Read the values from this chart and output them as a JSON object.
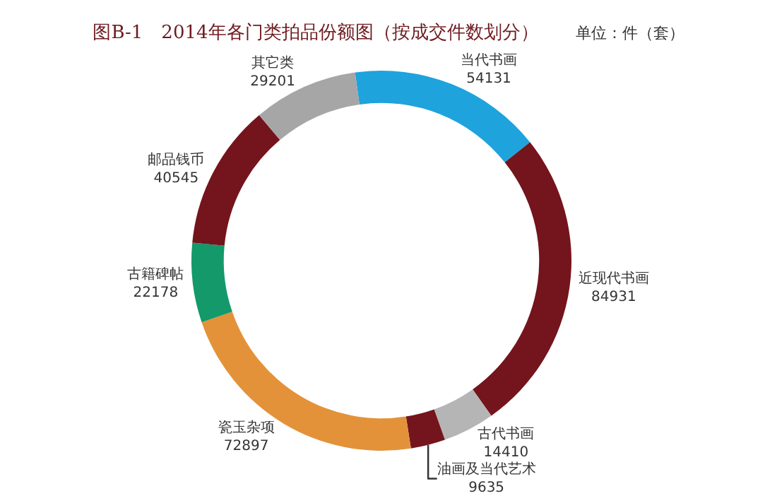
{
  "chart_data": {
    "type": "donut",
    "title": "图B-1　2014年各门类拍品份额图（按成交件数划分）",
    "subtitle": "单位：件（套）",
    "categories": [
      "当代书画",
      "近现代书画",
      "古代书画",
      "油画及当代艺术",
      "瓷玉杂项",
      "古籍碑帖",
      "邮品钱币",
      "其它类"
    ],
    "values": [
      54131,
      84931,
      14410,
      9635,
      72897,
      22178,
      40545,
      29201
    ],
    "colors": [
      "#1fa3dc",
      "#74141c",
      "#b5b5b5",
      "#74141c",
      "#e3923a",
      "#13996a",
      "#74141c",
      "#a6a6a6"
    ],
    "data_labels": true,
    "legend": false
  }
}
